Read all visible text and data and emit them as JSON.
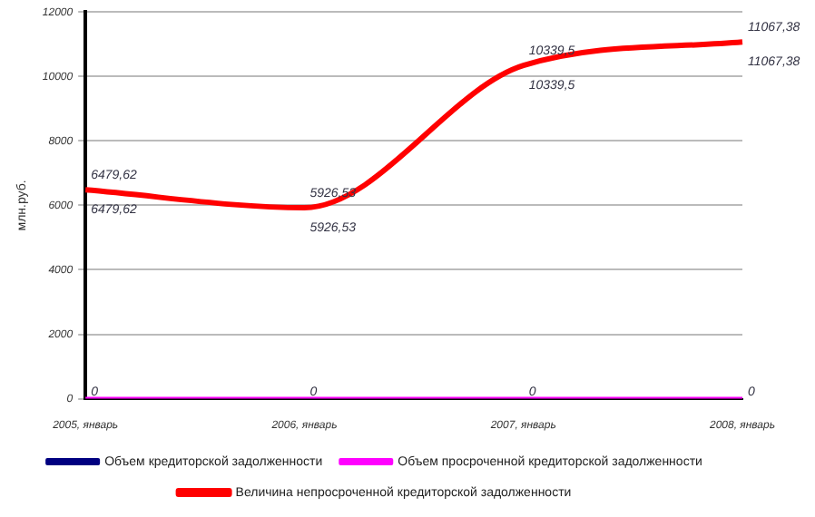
{
  "chart_data": {
    "type": "line",
    "ylabel": "млн.руб.",
    "categories": [
      "2005, январь",
      "2006, январь",
      "2007, январь",
      "2008, январь"
    ],
    "series": [
      {
        "name": "Объем кредиторской задолженности",
        "color": "#000080",
        "values": [
          null,
          null,
          null,
          null
        ]
      },
      {
        "name": "Объем просроченной кредиторской задолженности",
        "color": "#ff00ff",
        "values": [
          0,
          0,
          0,
          0
        ],
        "value_labels": [
          "0",
          "0",
          "0",
          "0"
        ]
      },
      {
        "name": "Величина непросроченной кредиторской задолженности",
        "color": "#ff0000",
        "values": [
          6479.62,
          5926.53,
          10339.5,
          11067.38
        ],
        "value_labels": [
          "6479,62",
          "5926,53",
          "10339,5",
          "11067,38"
        ]
      }
    ],
    "annotations": [
      {
        "text": "6479,62",
        "x": "2005, январь",
        "y": 6479.62
      },
      {
        "text": "5926,53",
        "x": "2006, январь",
        "y": 5926.53
      },
      {
        "text": "10339,5",
        "x": "2007, январь",
        "y": 10339.5
      },
      {
        "text": "11067,38",
        "x": "2008, январь",
        "y": 11067.38
      }
    ],
    "ylim": [
      0,
      12000
    ],
    "yticks": [
      0,
      2000,
      4000,
      6000,
      8000,
      10000,
      12000
    ],
    "grid": "y",
    "legend": "bottom",
    "marker": "none",
    "line_style": "solid"
  }
}
